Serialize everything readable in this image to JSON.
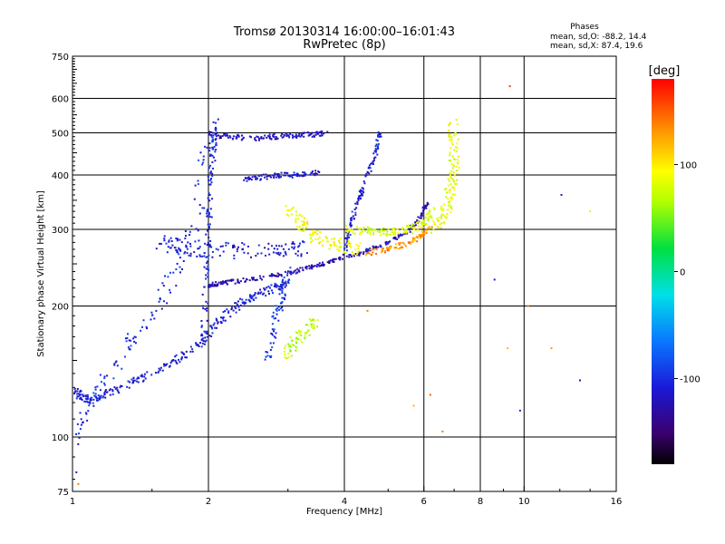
{
  "header": {
    "title": "Tromsø 20130314 16:00:00–16:01:43",
    "subtitle": "RwPretec (8p)"
  },
  "stats": {
    "heading": "Phases",
    "line_o": "mean, sd,O: -88.2, 14.4",
    "line_x": "mean, sd,X: 87.4, 19.6"
  },
  "colorbar": {
    "unit": "[deg]",
    "ticks": [
      {
        "value": 100,
        "label": "100"
      },
      {
        "value": 0,
        "label": "0"
      },
      {
        "value": -100,
        "label": "-100"
      }
    ],
    "range": [
      -180,
      180
    ]
  },
  "chart_data": {
    "type": "scatter",
    "xlabel": "Frequency [MHz]",
    "ylabel": "Stationary phase Virtual Height [km]",
    "x_scale": "log",
    "y_scale": "log",
    "xlim": [
      1,
      16
    ],
    "ylim": [
      75,
      750
    ],
    "x_ticks": [
      {
        "value": 1,
        "label": "1"
      },
      {
        "value": 2,
        "label": "2"
      },
      {
        "value": 4,
        "label": "4"
      },
      {
        "value": 6,
        "label": "6"
      },
      {
        "value": 8,
        "label": "8"
      },
      {
        "value": 10,
        "label": "10"
      },
      {
        "value": 16,
        "label": "16"
      }
    ],
    "y_ticks": [
      {
        "value": 75,
        "label": "75"
      },
      {
        "value": 100,
        "label": "100"
      },
      {
        "value": 200,
        "label": "200"
      },
      {
        "value": 300,
        "label": "300"
      },
      {
        "value": 400,
        "label": "400"
      },
      {
        "value": 500,
        "label": "500"
      },
      {
        "value": 600,
        "label": "600"
      },
      {
        "value": 750,
        "label": "750"
      }
    ],
    "grid": true,
    "color_variable": "Phase [deg]",
    "series": [
      {
        "segments": [
          {
            "f": [
              1.02,
              1.05,
              1.1,
              1.2,
              1.35,
              1.5,
              1.7,
              1.9,
              2.05,
              2.2,
              2.4,
              2.6,
              2.8,
              3.0
            ],
            "h": [
              128,
              123,
              122,
              126,
              133,
              140,
              150,
              163,
              178,
              192,
              205,
              214,
              220,
              225
            ],
            "phase": -110,
            "spread": 0.03
          },
          {
            "f": [
              2.0,
              2.1,
              2.3,
              2.6,
              3.0,
              3.3,
              3.6,
              4.0,
              4.5,
              5.0,
              5.5,
              5.9,
              6.1
            ],
            "h": [
              223,
              225,
              228,
              232,
              238,
              244,
              250,
              258,
              268,
              280,
              295,
              320,
              345
            ],
            "phase": -125,
            "spread": 0.015
          },
          {
            "f": [
              1.0,
              1.1,
              1.3,
              1.5,
              1.7,
              1.9,
              2.0
            ],
            "h": [
              100,
              120,
              155,
              190,
              240,
              330,
              520
            ],
            "phase": -100,
            "spread": 0.06
          },
          {
            "f": [
              1.95,
              1.97,
              2.0,
              2.02,
              2.05,
              2.08
            ],
            "h": [
              160,
              220,
              300,
              380,
              450,
              540
            ],
            "phase": -105,
            "spread": 0.03
          },
          {
            "f": [
              1.55,
              1.7,
              1.9,
              2.2,
              2.6,
              3.0,
              3.3
            ],
            "h": [
              280,
              275,
              270,
              268,
              268,
              270,
              272
            ],
            "phase": -110,
            "spread": 0.06
          },
          {
            "f": [
              2.0,
              2.2,
              2.5,
              2.8,
              3.1,
              3.4,
              3.7
            ],
            "h": [
              500,
              490,
              485,
              490,
              492,
              495,
              500
            ],
            "phase": -120,
            "spread": 0.02
          },
          {
            "f": [
              2.4,
              2.6,
              2.9,
              3.2,
              3.5
            ],
            "h": [
              390,
              395,
              400,
              400,
              405
            ],
            "phase": -115,
            "spread": 0.02
          },
          {
            "f": [
              4.0,
              4.1,
              4.3,
              4.5,
              4.7,
              4.8
            ],
            "h": [
              260,
              300,
              350,
              400,
              450,
              500
            ],
            "phase": -110,
            "spread": 0.02
          },
          {
            "f": [
              3.0,
              3.2,
              3.4,
              3.7,
              4.0,
              4.3
            ],
            "h": [
              340,
              310,
              290,
              280,
              275,
              270
            ],
            "phase": 90,
            "spread": 0.05
          },
          {
            "f": [
              4.0,
              4.4,
              4.8,
              5.2,
              5.6,
              6.0,
              6.3
            ],
            "h": [
              300,
              298,
              296,
              296,
              300,
              310,
              330
            ],
            "phase": 80,
            "spread": 0.03
          },
          {
            "f": [
              4.5,
              5.0,
              5.5,
              5.9,
              6.2
            ],
            "h": [
              265,
              270,
              278,
              290,
              300
            ],
            "phase": 130,
            "spread": 0.02
          },
          {
            "f": [
              6.3,
              6.6,
              6.8,
              6.9,
              7.0,
              7.0,
              6.95
            ],
            "h": [
              300,
              320,
              350,
              380,
              420,
              470,
              530
            ],
            "phase": 85,
            "spread": 0.05
          },
          {
            "f": [
              3.0,
              3.1,
              3.3,
              3.5
            ],
            "h": [
              155,
              165,
              175,
              185
            ],
            "phase": 70,
            "spread": 0.05
          },
          {
            "f": [
              2.7,
              2.8,
              2.9,
              3.0
            ],
            "h": [
              150,
              180,
              210,
              240
            ],
            "phase": -95,
            "spread": 0.04
          }
        ]
      }
    ],
    "scatter_points": [
      {
        "f": 9.3,
        "h": 640,
        "phase": 160
      },
      {
        "f": 12.1,
        "h": 360,
        "phase": -110
      },
      {
        "f": 10.2,
        "h": 200,
        "phase": 140
      },
      {
        "f": 11.5,
        "h": 160,
        "phase": 130
      },
      {
        "f": 13.3,
        "h": 135,
        "phase": -120
      },
      {
        "f": 9.8,
        "h": 115,
        "phase": -100
      },
      {
        "f": 9.2,
        "h": 160,
        "phase": 120
      },
      {
        "f": 8.6,
        "h": 230,
        "phase": -110
      },
      {
        "f": 6.6,
        "h": 103,
        "phase": 140
      },
      {
        "f": 6.2,
        "h": 125,
        "phase": 150
      },
      {
        "f": 5.7,
        "h": 118,
        "phase": 120
      },
      {
        "f": 4.5,
        "h": 195,
        "phase": 140
      },
      {
        "f": 1.03,
        "h": 78,
        "phase": 140
      },
      {
        "f": 1.02,
        "h": 83,
        "phase": -110
      },
      {
        "f": 14.0,
        "h": 330,
        "phase": 80
      }
    ]
  }
}
